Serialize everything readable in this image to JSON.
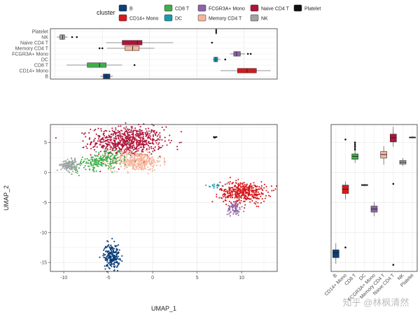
{
  "chart_data": [
    {
      "id": "legend",
      "type": "legend",
      "title": "cluster",
      "entries": [
        {
          "name": "B",
          "color": "#0b3f7a"
        },
        {
          "name": "CD14+ Mono",
          "color": "#d7191c"
        },
        {
          "name": "CD8 T",
          "color": "#3fae49"
        },
        {
          "name": "DC",
          "color": "#1b9aaa"
        },
        {
          "name": "FCGR3A+ Mono",
          "color": "#8e63a8"
        },
        {
          "name": "Memory CD4 T",
          "color": "#f6b49a"
        },
        {
          "name": "Naive CD4 T",
          "color": "#b0143a"
        },
        {
          "name": "NK",
          "color": "#9ea3a6"
        },
        {
          "name": "Platelet",
          "color": "#111111"
        }
      ]
    },
    {
      "id": "top_boxplot",
      "type": "boxplot",
      "orientation": "horizontal",
      "value_axis": "UMAP_1",
      "xlim": [
        -10.5,
        13.5
      ],
      "grid": true,
      "categories": [
        "B",
        "CD14+ Mono",
        "CD8 T",
        "DC",
        "FCGR3A+ Mono",
        "Memory CD4 T",
        "Naive CD4 T",
        "NK",
        "Platelet"
      ],
      "boxes": [
        {
          "cluster": "B",
          "min": -5.2,
          "q1": -4.9,
          "median": -4.6,
          "q3": -4.2,
          "max": -3.9,
          "outliers": []
        },
        {
          "cluster": "CD14+ Mono",
          "min": 7.5,
          "q1": 9.3,
          "median": 10.3,
          "q3": 11.3,
          "max": 12.8,
          "outliers": []
        },
        {
          "cluster": "CD8 T",
          "min": -8.8,
          "q1": -6.6,
          "median": -5.3,
          "q3": -4.6,
          "max": -2.9,
          "outliers": [
            -1.6
          ]
        },
        {
          "cluster": "DC",
          "min": 6.7,
          "q1": 6.8,
          "median": 7.0,
          "q3": 7.2,
          "max": 7.5,
          "outliers": [
            8.0
          ]
        },
        {
          "cluster": "FCGR3A+ Mono",
          "min": 8.5,
          "q1": 8.9,
          "median": 9.2,
          "q3": 9.6,
          "max": 10.1,
          "outliers": [
            10.4,
            10.7
          ]
        },
        {
          "cluster": "Memory CD4 T",
          "min": -4.5,
          "q1": -2.6,
          "median": -1.8,
          "q3": -1.1,
          "max": 0.5,
          "outliers": [
            -5.3,
            -5.0
          ]
        },
        {
          "cluster": "Naive CD4 T",
          "min": -4.6,
          "q1": -2.9,
          "median": -1.3,
          "q3": -0.8,
          "max": 2.5,
          "outliers": [
            6.6
          ]
        },
        {
          "cluster": "NK",
          "min": -9.8,
          "q1": -9.5,
          "median": -9.2,
          "q3": -9.0,
          "max": -8.7,
          "outliers": [
            -8.2,
            -7.7
          ]
        },
        {
          "cluster": "Platelet",
          "min": 7.0,
          "q1": 7.0,
          "median": 7.0,
          "q3": 7.1,
          "max": 7.1,
          "outliers": []
        }
      ]
    },
    {
      "id": "umap_scatter",
      "type": "scatter",
      "xlabel": "UMAP_1",
      "ylabel": "UMAP_2",
      "xlim": [
        -11.5,
        14
      ],
      "ylim": [
        -16.5,
        8
      ],
      "xticks": [
        -10,
        -5,
        0,
        5,
        10
      ],
      "yticks": [
        5,
        0,
        -5,
        -10,
        -15
      ],
      "grid": true,
      "clusters": [
        {
          "name": "Naive CD4 T",
          "cx": -2.8,
          "cy": 5.2,
          "sx": 2.0,
          "sy": 1.2,
          "n": 700
        },
        {
          "name": "Memory CD4 T",
          "cx": -1.8,
          "cy": 1.9,
          "sx": 1.4,
          "sy": 0.8,
          "n": 380
        },
        {
          "name": "CD8 T",
          "cx": -5.8,
          "cy": 2.0,
          "sx": 1.6,
          "sy": 0.7,
          "n": 240
        },
        {
          "name": "NK",
          "cx": -9.4,
          "cy": 1.2,
          "sx": 0.45,
          "sy": 0.45,
          "n": 140
        },
        {
          "name": "B",
          "cx": -4.6,
          "cy": -13.9,
          "sx": 0.45,
          "sy": 1.0,
          "n": 230
        },
        {
          "name": "CD14+ Mono",
          "cx": 10.2,
          "cy": -3.3,
          "sx": 1.3,
          "sy": 0.9,
          "n": 420
        },
        {
          "name": "FCGR3A+ Mono",
          "cx": 9.2,
          "cy": -6.0,
          "sx": 0.4,
          "sy": 0.6,
          "n": 70
        },
        {
          "name": "DC",
          "cx": 7.1,
          "cy": -2.2,
          "sx": 0.35,
          "sy": 0.15,
          "n": 18
        },
        {
          "name": "Platelet",
          "cx": 7.0,
          "cy": 5.9,
          "sx": 0.1,
          "sy": 0.1,
          "n": 8
        }
      ]
    },
    {
      "id": "right_boxplot",
      "type": "boxplot",
      "orientation": "vertical",
      "value_axis": "UMAP_2",
      "ylim": [
        -16.5,
        8
      ],
      "grid": true,
      "categories": [
        "B",
        "CD14+ Mono",
        "CD8 T",
        "DC",
        "FCGR3A+ Mono",
        "Memory CD4 T",
        "Naive CD4 T",
        "NK",
        "Platelet"
      ],
      "boxes": [
        {
          "cluster": "B",
          "min": -15.2,
          "q1": -14.2,
          "median": -13.4,
          "q3": -12.9,
          "max": -11.8,
          "outliers": []
        },
        {
          "cluster": "CD14+ Mono",
          "min": -4.5,
          "q1": -3.5,
          "median": -2.8,
          "q3": -2.1,
          "max": -1.5,
          "outliers": [
            -12.5,
            5.5
          ]
        },
        {
          "cluster": "CD8 T",
          "min": 1.6,
          "q1": 2.2,
          "median": 2.7,
          "q3": 3.1,
          "max": 3.6,
          "outliers": [
            3.8,
            4.1,
            4.4,
            4.7,
            5.0
          ]
        },
        {
          "cluster": "DC",
          "min": -2.3,
          "q1": -2.2,
          "median": -2.1,
          "q3": -2.0,
          "max": -1.9,
          "outliers": []
        },
        {
          "cluster": "FCGR3A+ Mono",
          "min": -7.3,
          "q1": -6.6,
          "median": -6.1,
          "q3": -5.6,
          "max": -4.9,
          "outliers": []
        },
        {
          "cluster": "Memory CD4 T",
          "min": 1.3,
          "q1": 2.4,
          "median": 3.0,
          "q3": 3.5,
          "max": 4.4,
          "outliers": []
        },
        {
          "cluster": "Naive CD4 T",
          "min": 4.3,
          "q1": 5.1,
          "median": 5.8,
          "q3": 6.4,
          "max": 7.6,
          "outliers": [
            -1.9,
            -15.4
          ]
        },
        {
          "cluster": "NK",
          "min": 1.1,
          "q1": 1.4,
          "median": 1.7,
          "q3": 2.0,
          "max": 2.4,
          "outliers": []
        },
        {
          "cluster": "Platelet",
          "min": 5.8,
          "q1": 5.8,
          "median": 5.9,
          "q3": 5.9,
          "max": 6.0,
          "outliers": []
        }
      ]
    }
  ],
  "watermark": "知乎 @林枫清然"
}
